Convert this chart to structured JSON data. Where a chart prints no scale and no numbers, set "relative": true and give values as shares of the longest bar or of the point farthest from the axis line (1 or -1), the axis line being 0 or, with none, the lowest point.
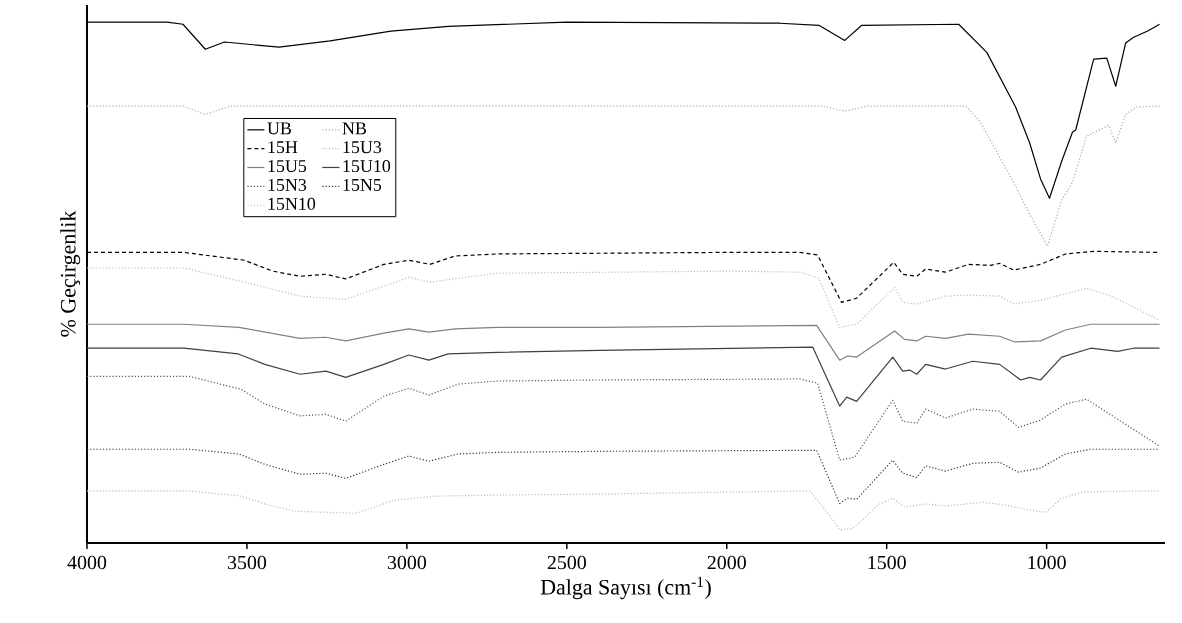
{
  "chart_data": {
    "type": "line",
    "relative": true,
    "xlabel": "Dalga Sayısı (cm$^{-1}$)",
    "ylabel": "% Geçirgenlik",
    "xlim": [
      4000,
      630
    ],
    "xticks": [
      4000,
      3500,
      3000,
      2500,
      2000,
      1500,
      1000
    ],
    "tick_labels": "x",
    "legend": "top left",
    "marker": "none",
    "series": [
      {
        "name": "UB",
        "color": "#000000",
        "line_style": "solid",
        "x": [
          4000,
          3750,
          3700,
          3630,
          3570,
          3400,
          3240,
          3050,
          2870,
          2500,
          1834,
          1712,
          1631,
          1578,
          1275,
          1187,
          1097,
          1053,
          1019,
          991,
          953,
          919,
          909,
          853,
          812,
          784,
          753,
          728,
          684,
          647
        ],
        "values": [
          1.0,
          1.0,
          0.996,
          0.948,
          0.962,
          0.952,
          0.964,
          0.983,
          0.992,
          1.0,
          0.998,
          0.994,
          0.965,
          0.994,
          0.996,
          0.942,
          0.837,
          0.768,
          0.699,
          0.662,
          0.733,
          0.789,
          0.793,
          0.929,
          0.931,
          0.877,
          0.96,
          0.971,
          0.983,
          0.996
        ]
      },
      {
        "name": "NB",
        "color": "#aaaaaa",
        "line_style": "dotted",
        "x": [
          4000,
          3700,
          3630,
          3550,
          2000,
          1700,
          1631,
          1560,
          1253,
          1209,
          1109,
          1053,
          997,
          953,
          919,
          875,
          806,
          784,
          753,
          719,
          647
        ],
        "values": [
          0.839,
          0.839,
          0.823,
          0.839,
          0.839,
          0.839,
          0.829,
          0.839,
          0.839,
          0.81,
          0.699,
          0.631,
          0.57,
          0.658,
          0.693,
          0.781,
          0.802,
          0.768,
          0.823,
          0.837,
          0.839
        ]
      },
      {
        "name": "15H",
        "color": "#000000",
        "line_style": "dashed",
        "x": [
          4000,
          3697,
          3509,
          3419,
          3334,
          3253,
          3191,
          3072,
          2994,
          2928,
          2850,
          2716,
          2000,
          1772,
          1716,
          1641,
          1594,
          1478,
          1450,
          1406,
          1378,
          1316,
          1244,
          1175,
          1147,
          1103,
          1019,
          941,
          853,
          647
        ],
        "values": [
          0.558,
          0.558,
          0.543,
          0.522,
          0.512,
          0.516,
          0.507,
          0.535,
          0.543,
          0.535,
          0.551,
          0.555,
          0.558,
          0.558,
          0.553,
          0.462,
          0.47,
          0.539,
          0.516,
          0.512,
          0.526,
          0.52,
          0.535,
          0.533,
          0.537,
          0.524,
          0.535,
          0.555,
          0.56,
          0.558
        ]
      },
      {
        "name": "15U3",
        "color": "#bbbbbb",
        "line_style": "dotted",
        "x": [
          4000,
          3697,
          3509,
          3334,
          3191,
          3072,
          2994,
          2928,
          2716,
          2000,
          1772,
          1712,
          1647,
          1594,
          1475,
          1450,
          1406,
          1316,
          1244,
          1147,
          1100,
          1019,
          875,
          797,
          647
        ],
        "values": [
          0.528,
          0.528,
          0.501,
          0.474,
          0.468,
          0.493,
          0.51,
          0.501,
          0.518,
          0.522,
          0.52,
          0.508,
          0.414,
          0.42,
          0.491,
          0.462,
          0.459,
          0.474,
          0.476,
          0.474,
          0.459,
          0.466,
          0.489,
          0.474,
          0.428
        ]
      },
      {
        "name": "15U5",
        "color": "#808080",
        "line_style": "solid",
        "x": [
          4000,
          3697,
          3525,
          3334,
          3253,
          3191,
          3072,
          2994,
          2931,
          2850,
          2716,
          2397,
          1719,
          1647,
          1622,
          1594,
          1475,
          1444,
          1406,
          1378,
          1316,
          1244,
          1147,
          1100,
          1019,
          941,
          862,
          647
        ],
        "values": [
          0.42,
          0.42,
          0.414,
          0.393,
          0.395,
          0.388,
          0.403,
          0.411,
          0.405,
          0.411,
          0.414,
          0.414,
          0.418,
          0.351,
          0.359,
          0.357,
          0.407,
          0.391,
          0.388,
          0.397,
          0.393,
          0.401,
          0.397,
          0.386,
          0.388,
          0.409,
          0.42,
          0.42
        ]
      },
      {
        "name": "15U10",
        "color": "#404040",
        "line_style": "solid",
        "x": [
          4000,
          3697,
          3527,
          3444,
          3334,
          3253,
          3191,
          3072,
          2994,
          2931,
          2871,
          2716,
          2397,
          1731,
          1647,
          1625,
          1594,
          1481,
          1450,
          1428,
          1406,
          1378,
          1316,
          1231,
          1147,
          1081,
          1053,
          1019,
          953,
          862,
          778,
          728,
          647
        ],
        "values": [
          0.374,
          0.374,
          0.363,
          0.343,
          0.324,
          0.33,
          0.318,
          0.343,
          0.361,
          0.351,
          0.363,
          0.366,
          0.37,
          0.376,
          0.263,
          0.28,
          0.272,
          0.357,
          0.33,
          0.332,
          0.324,
          0.343,
          0.334,
          0.349,
          0.343,
          0.313,
          0.318,
          0.313,
          0.357,
          0.374,
          0.368,
          0.374,
          0.374
        ]
      },
      {
        "name": "15N3",
        "color": "#555555",
        "line_style": "dotted",
        "x": [
          4000,
          3680,
          3518,
          3444,
          3334,
          3253,
          3191,
          3072,
          2994,
          2931,
          2840,
          2716,
          2397,
          1772,
          1716,
          1647,
          1600,
          1481,
          1450,
          1406,
          1378,
          1316,
          1231,
          1147,
          1088,
          1019,
          941,
          875,
          647
        ],
        "values": [
          0.32,
          0.32,
          0.295,
          0.267,
          0.244,
          0.247,
          0.234,
          0.282,
          0.297,
          0.284,
          0.305,
          0.311,
          0.313,
          0.315,
          0.307,
          0.159,
          0.165,
          0.274,
          0.234,
          0.23,
          0.257,
          0.24,
          0.257,
          0.253,
          0.222,
          0.236,
          0.267,
          0.276,
          0.186
        ]
      },
      {
        "name": "15N5",
        "color": "#333333",
        "line_style": "dotted",
        "x": [
          4000,
          3680,
          3525,
          3444,
          3334,
          3253,
          3191,
          3072,
          2994,
          2931,
          2840,
          2716,
          2397,
          1719,
          1647,
          1622,
          1594,
          1481,
          1450,
          1406,
          1378,
          1316,
          1231,
          1147,
          1088,
          1019,
          941,
          862,
          647
        ],
        "values": [
          0.18,
          0.18,
          0.171,
          0.151,
          0.132,
          0.134,
          0.124,
          0.151,
          0.167,
          0.157,
          0.171,
          0.174,
          0.176,
          0.178,
          0.076,
          0.086,
          0.084,
          0.159,
          0.134,
          0.126,
          0.148,
          0.138,
          0.153,
          0.155,
          0.136,
          0.144,
          0.171,
          0.18,
          0.18
        ]
      },
      {
        "name": "15N10",
        "color": "#bbbbbb",
        "line_style": "dotted",
        "x": [
          4000,
          3680,
          3518,
          3444,
          3350,
          3160,
          3040,
          2910,
          2716,
          2397,
          1741,
          1678,
          1647,
          1606,
          1569,
          1528,
          1481,
          1444,
          1378,
          1316,
          1197,
          1131,
          1053,
          1003,
          953,
          884,
          684,
          647
        ],
        "values": [
          0.1,
          0.1,
          0.09,
          0.075,
          0.061,
          0.057,
          0.082,
          0.09,
          0.092,
          0.094,
          0.1,
          0.053,
          0.025,
          0.028,
          0.048,
          0.073,
          0.086,
          0.069,
          0.075,
          0.071,
          0.078,
          0.073,
          0.063,
          0.059,
          0.086,
          0.098,
          0.1,
          0.1
        ]
      }
    ]
  }
}
